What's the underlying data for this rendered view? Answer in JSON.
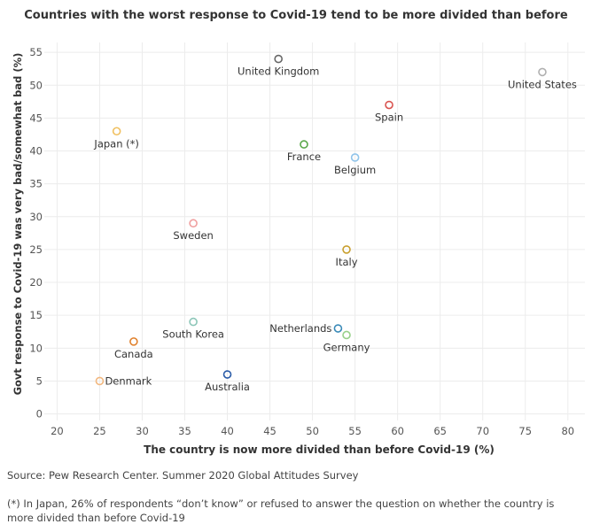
{
  "chart_data": {
    "type": "scatter",
    "title": "Countries with the worst response to Covid-19 tend to be more divided than before",
    "xlabel": "The country is now more divided than before Covid-19 (%)",
    "ylabel": "Govt response to Covid-19 was very bad/somewhat bad (%)",
    "xlim": [
      18.5,
      82
    ],
    "ylim": [
      -1,
      56.5
    ],
    "xticks": [
      20,
      25,
      30,
      35,
      40,
      45,
      50,
      55,
      60,
      65,
      70,
      75,
      80
    ],
    "yticks": [
      0,
      5,
      10,
      15,
      20,
      25,
      30,
      35,
      40,
      45,
      50,
      55
    ],
    "grid": true,
    "points": [
      {
        "label": "United Kingdom",
        "x": 46,
        "y": 54,
        "color": "#666666",
        "label_pos": "below"
      },
      {
        "label": "United States",
        "x": 77,
        "y": 52,
        "color": "#b0b0b0",
        "label_pos": "below"
      },
      {
        "label": "Spain",
        "x": 59,
        "y": 47,
        "color": "#d9534f",
        "label_pos": "below"
      },
      {
        "label": "Japan (*)",
        "x": 27,
        "y": 43,
        "color": "#f0c060",
        "label_pos": "below"
      },
      {
        "label": "France",
        "x": 49,
        "y": 41,
        "color": "#5aa84a",
        "label_pos": "below"
      },
      {
        "label": "Belgium",
        "x": 55,
        "y": 39,
        "color": "#90c4ea",
        "label_pos": "below"
      },
      {
        "label": "Sweden",
        "x": 36,
        "y": 29,
        "color": "#f0a0a0",
        "label_pos": "below"
      },
      {
        "label": "Italy",
        "x": 54,
        "y": 25,
        "color": "#c9a030",
        "label_pos": "below"
      },
      {
        "label": "South Korea",
        "x": 36,
        "y": 14,
        "color": "#8cc6b8",
        "label_pos": "below"
      },
      {
        "label": "Netherlands",
        "x": 53,
        "y": 13,
        "color": "#3a8ab8",
        "label_pos": "left"
      },
      {
        "label": "Germany",
        "x": 54,
        "y": 12,
        "color": "#98d08a",
        "label_pos": "below"
      },
      {
        "label": "Canada",
        "x": 29,
        "y": 11,
        "color": "#e0802c",
        "label_pos": "below"
      },
      {
        "label": "Australia",
        "x": 40,
        "y": 6,
        "color": "#2a5ba8",
        "label_pos": "below"
      },
      {
        "label": "Denmark",
        "x": 25,
        "y": 5,
        "color": "#f2b880",
        "label_pos": "right"
      }
    ]
  },
  "source": "Source: Pew Research Center. Summer 2020 Global Attitudes Survey",
  "footnote": "(*) In Japan, 26% of respondents “don’t know” or refused to answer the question on whether the country is more divided than before Covid-19"
}
